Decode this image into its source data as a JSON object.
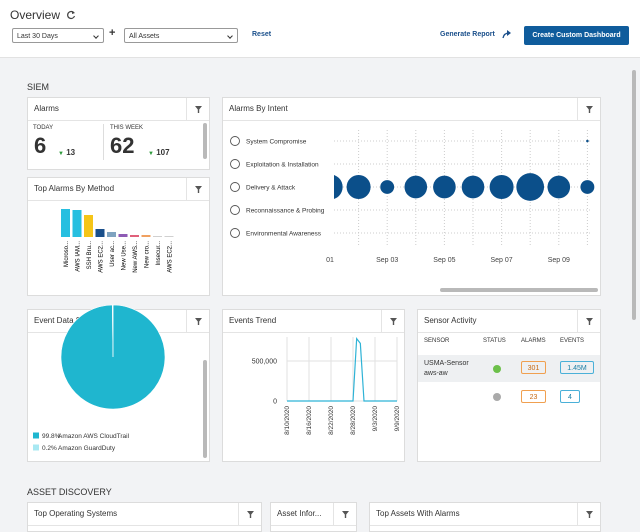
{
  "header": {
    "title": "Overview",
    "date_filter": "Last 30 Days",
    "plus": "+",
    "asset_filter": "All Assets",
    "reset": "Reset",
    "generate_report": "Generate Report",
    "create_dashboard": "Create Custom Dashboard"
  },
  "siem": {
    "title": "SIEM",
    "alarms": {
      "title": "Alarms",
      "today_label": "TODAY",
      "today": 6,
      "today_change": 13,
      "week_label": "THIS WEEK",
      "week": 62,
      "week_change": 107
    },
    "top_alarms_by_method": {
      "title": "Top Alarms By Method",
      "chart_data": {
        "type": "bar",
        "categories": [
          "Microso...",
          "AWS IAM...",
          "SSH Bru...",
          "AWS EC2...",
          "User ac...",
          "New Use...",
          "New AWS...",
          "New cro...",
          "Insecur...",
          "AWS EC2..."
        ],
        "values": [
          28,
          27,
          22,
          8,
          5,
          3,
          2,
          2,
          1,
          1
        ],
        "colors": [
          "#27bfe0",
          "#27bfe0",
          "#f5c518",
          "#1a4f8b",
          "#7fa3c0",
          "#8e5bb5",
          "#e0607a",
          "#f0a060",
          "#d0d0d0",
          "#d0d0d0"
        ]
      }
    },
    "alarms_by_intent": {
      "title": "Alarms By Intent",
      "chart_data": {
        "type": "bubble",
        "color": "#0b4f8a",
        "categories": [
          "01",
          null,
          "Sep 03",
          null,
          "Sep 05",
          null,
          "Sep 07",
          null,
          "Sep 09",
          null
        ],
        "series": [
          {
            "name": "System Compromise",
            "values": [
              null,
              null,
              null,
              null,
              null,
              null,
              null,
              null,
              null,
              0.1
            ]
          },
          {
            "name": "Exploitation & Installation",
            "values": [
              null,
              null,
              null,
              null,
              null,
              null,
              null,
              null,
              null,
              null
            ]
          },
          {
            "name": "Delivery & Attack",
            "values": [
              10,
              9,
              3,
              8,
              8,
              8,
              9,
              12,
              8,
              3
            ]
          },
          {
            "name": "Reconnaissance & Probing",
            "values": [
              null,
              null,
              null,
              null,
              null,
              null,
              null,
              null,
              null,
              null
            ]
          },
          {
            "name": "Environmental Awareness",
            "values": [
              null,
              null,
              null,
              null,
              null,
              null,
              null,
              null,
              null,
              null
            ]
          }
        ]
      }
    },
    "event_data_sources": {
      "title": "Event Data Sources",
      "chart_data": {
        "type": "pie",
        "categories": [
          "Amazon AWS CloudTrail",
          "Amazon GuardDuty"
        ],
        "values": [
          99.8,
          0.2
        ],
        "value_labels": [
          "99.8%",
          "0.2%"
        ],
        "colors": [
          "#1fb6cf",
          "#a8e8f2"
        ]
      }
    },
    "events_trend": {
      "title": "Events Trend",
      "chart_data": {
        "type": "line",
        "color": "#2fb3d6",
        "x": [
          "8/10/2020",
          null,
          null,
          null,
          null,
          null,
          "8/16/2020",
          null,
          null,
          null,
          null,
          null,
          "8/22/2020",
          null,
          null,
          null,
          null,
          null,
          "8/28/2020",
          null,
          null,
          null,
          null,
          null,
          "9/3/2020",
          null,
          null,
          null,
          null,
          null,
          "9/9/2020"
        ],
        "values": [
          0,
          0,
          0,
          0,
          0,
          0,
          0,
          0,
          0,
          0,
          0,
          0,
          0,
          0,
          0,
          0,
          0,
          0,
          0,
          780000,
          720000,
          0,
          0,
          0,
          0,
          0,
          0,
          0,
          0,
          0,
          0
        ],
        "ylim": [
          0,
          800000
        ],
        "yticks": [
          0,
          {
            "value": 500000,
            "label": "500,000"
          }
        ],
        "grid": true
      }
    },
    "sensor_activity": {
      "title": "Sensor Activity",
      "headers": [
        "SENSOR",
        "STATUS",
        "ALARMS",
        "EVENTS"
      ],
      "rows": [
        {
          "sensor": "USMA-Sensor",
          "sensor_sub": "aws-aw",
          "alarms": 301,
          "events": "1.45M"
        },
        {
          "alarms": 23,
          "events": 4
        }
      ]
    }
  },
  "asset_discovery": {
    "title": "ASSET DISCOVERY",
    "widgets": [
      "Top Operating Systems",
      "Asset Infor...",
      "Top Assets With Alarms"
    ]
  }
}
